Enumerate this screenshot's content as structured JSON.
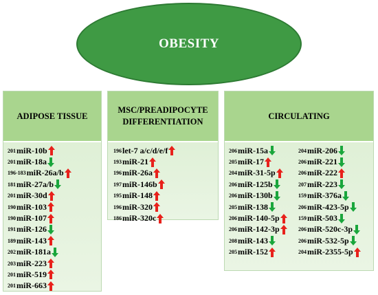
{
  "center": {
    "title": "OBESITY"
  },
  "colors": {
    "up": "#e8211b",
    "down": "#1aa63c",
    "ellipse": "#3f9a44",
    "header": "#a9d58e"
  },
  "panels": [
    {
      "title": "ADIPOSE TISSUE",
      "items": [
        {
          "ref": "201",
          "name": "miR-10b",
          "trend": "up"
        },
        {
          "ref": "201",
          "name": "miR-18a",
          "trend": "down"
        },
        {
          "ref": "196-183",
          "name": "miR-26a/b",
          "trend": "up"
        },
        {
          "ref": "181",
          "name": "miR-27a/b",
          "trend": "down"
        },
        {
          "ref": "201",
          "name": "miR-30d",
          "trend": "up"
        },
        {
          "ref": "190",
          "name": "miR-103",
          "trend": "up"
        },
        {
          "ref": "190",
          "name": "miR-107",
          "trend": "up"
        },
        {
          "ref": "191",
          "name": "miR-126",
          "trend": "down"
        },
        {
          "ref": "189",
          "name": "miR-143",
          "trend": "up"
        },
        {
          "ref": "202",
          "name": "miR-181a",
          "trend": "down"
        },
        {
          "ref": "203",
          "name": "miR-223",
          "trend": "up"
        },
        {
          "ref": "201",
          "name": "miR-519",
          "trend": "up"
        },
        {
          "ref": "201",
          "name": "miR-663",
          "trend": "up"
        }
      ]
    },
    {
      "title_line1": "MSC/PREADIPOCYTE",
      "title_line2": "DIFFERENTIATION",
      "items": [
        {
          "ref": "196",
          "name": "let-7 a/c/d/e/f",
          "trend": "up"
        },
        {
          "ref": "193",
          "name": "miR-21",
          "trend": "up"
        },
        {
          "ref": "196",
          "name": "miR-26a",
          "trend": "up"
        },
        {
          "ref": "197",
          "name": "miR-146b",
          "trend": "up"
        },
        {
          "ref": "195",
          "name": "miR-148",
          "trend": "up"
        },
        {
          "ref": "196",
          "name": "miR-320",
          "trend": "up"
        },
        {
          "ref": "186",
          "name": "miR-320c",
          "trend": "up"
        }
      ]
    },
    {
      "title": "CIRCULATING",
      "left_items": [
        {
          "ref": "206",
          "name": "miR-15a",
          "trend": "down"
        },
        {
          "ref": "205",
          "name": "miR-17",
          "trend": "up"
        },
        {
          "ref": "204",
          "name": "miR-31-5p",
          "trend": "up"
        },
        {
          "ref": "206",
          "name": "miR-125b",
          "trend": "down"
        },
        {
          "ref": "206",
          "name": "miR-130b",
          "trend": "down"
        },
        {
          "ref": "205",
          "name": "miR-138",
          "trend": "down"
        },
        {
          "ref": "206",
          "name": "miR-140-5p",
          "trend": "up"
        },
        {
          "ref": "206",
          "name": "miR-142-3p",
          "trend": "up"
        },
        {
          "ref": "208",
          "name": "miR-143",
          "trend": "down"
        },
        {
          "ref": "205",
          "name": "miR-152",
          "trend": "up"
        }
      ],
      "right_items": [
        {
          "ref": "204",
          "name": "miR-206",
          "trend": "down"
        },
        {
          "ref": "206",
          "name": "miR-221",
          "trend": "down"
        },
        {
          "ref": "206",
          "name": "miR-222",
          "trend": "up"
        },
        {
          "ref": "207",
          "name": "miR-223",
          "trend": "down"
        },
        {
          "ref": "159",
          "name": "miR-376a",
          "trend": "down"
        },
        {
          "ref": "206",
          "name": "miR-423-5p",
          "trend": "down"
        },
        {
          "ref": "159",
          "name": "miR-503",
          "trend": "down"
        },
        {
          "ref": "206",
          "name": "miR-520c-3p",
          "trend": "down"
        },
        {
          "ref": "206",
          "name": "miR-532-5p",
          "trend": "down"
        },
        {
          "ref": "204",
          "name": "miR-2355-5p",
          "trend": "up"
        }
      ]
    }
  ]
}
